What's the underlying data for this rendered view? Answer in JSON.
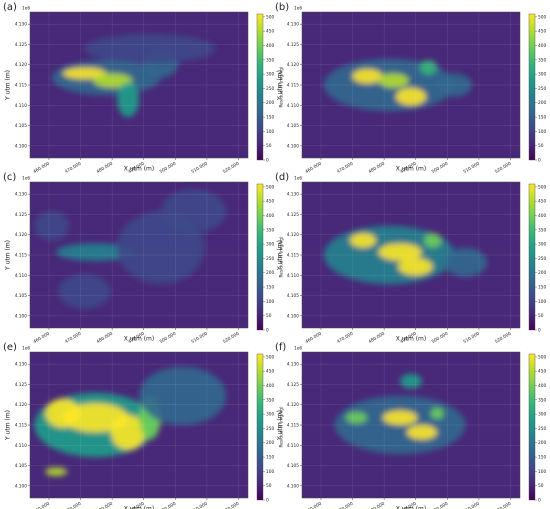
{
  "chart_data": [
    {
      "type": "heatmap",
      "panel_label": "(a)",
      "xlabel": "X utm (m)",
      "ylabel": "Y utm (m)",
      "y_offset": "1e6",
      "colormap": "viridis",
      "xlim": [
        454000,
        523000
      ],
      "xticks": [
        {
          "value": 460000,
          "label": "460.000"
        },
        {
          "value": 470000,
          "label": "470.000"
        },
        {
          "value": 480000,
          "label": "480.000"
        },
        {
          "value": 490000,
          "label": "490.000"
        },
        {
          "value": 500000,
          "label": "500.000"
        },
        {
          "value": 510000,
          "label": "510.000"
        },
        {
          "value": 520000,
          "label": "520.000"
        }
      ],
      "ylim": [
        4.097,
        4.133
      ],
      "yticks": [
        {
          "value": 4.1,
          "label": "4.100"
        },
        {
          "value": 4.105,
          "label": "4.105"
        },
        {
          "value": 4.11,
          "label": "4.110"
        },
        {
          "value": 4.115,
          "label": "4.115"
        },
        {
          "value": 4.12,
          "label": "4.120"
        },
        {
          "value": 4.125,
          "label": "4.125"
        },
        {
          "value": 4.13,
          "label": "4.130"
        }
      ],
      "colorbar_label": "Residual N (mg/kg)",
      "clim": [
        0,
        510
      ],
      "cticks": [
        0,
        50,
        100,
        150,
        200,
        250,
        300,
        350,
        400,
        450,
        500
      ]
    },
    {
      "type": "heatmap",
      "panel_label": "(b)",
      "xlabel": "X utm (m)",
      "ylabel": "Y utm (m)",
      "y_offset": "1e6",
      "colormap": "viridis",
      "xlim": [
        454000,
        523000
      ],
      "xticks": [
        {
          "value": 460000,
          "label": "460.000"
        },
        {
          "value": 470000,
          "label": "470.000"
        },
        {
          "value": 480000,
          "label": "480.000"
        },
        {
          "value": 490000,
          "label": "490.000"
        },
        {
          "value": 500000,
          "label": "500.000"
        },
        {
          "value": 510000,
          "label": "510.000"
        },
        {
          "value": 520000,
          "label": "520.000"
        }
      ],
      "ylim": [
        4.097,
        4.133
      ],
      "yticks": [
        {
          "value": 4.1,
          "label": "4.100"
        },
        {
          "value": 4.105,
          "label": "4.105"
        },
        {
          "value": 4.11,
          "label": "4.110"
        },
        {
          "value": 4.115,
          "label": "4.115"
        },
        {
          "value": 4.12,
          "label": "4.120"
        },
        {
          "value": 4.125,
          "label": "4.125"
        },
        {
          "value": 4.13,
          "label": "4.130"
        }
      ],
      "colorbar_label": "Residual N (mg/kg)",
      "clim": [
        0,
        510
      ],
      "cticks": [
        0,
        50,
        100,
        150,
        200,
        250,
        300,
        350,
        400,
        450,
        500
      ]
    },
    {
      "type": "heatmap",
      "panel_label": "(c)",
      "xlabel": "X utm (m)",
      "ylabel": "Y utm (m)",
      "y_offset": "1e6",
      "colormap": "viridis",
      "xlim": [
        454000,
        523000
      ],
      "xticks": [
        {
          "value": 460000,
          "label": "460.000"
        },
        {
          "value": 470000,
          "label": "470.000"
        },
        {
          "value": 480000,
          "label": "480.000"
        },
        {
          "value": 490000,
          "label": "490.000"
        },
        {
          "value": 500000,
          "label": "500.000"
        },
        {
          "value": 510000,
          "label": "510.000"
        },
        {
          "value": 520000,
          "label": "520.000"
        }
      ],
      "ylim": [
        4.097,
        4.133
      ],
      "yticks": [
        {
          "value": 4.1,
          "label": "4.100"
        },
        {
          "value": 4.105,
          "label": "4.105"
        },
        {
          "value": 4.11,
          "label": "4.110"
        },
        {
          "value": 4.115,
          "label": "4.115"
        },
        {
          "value": 4.12,
          "label": "4.120"
        },
        {
          "value": 4.125,
          "label": "4.125"
        },
        {
          "value": 4.13,
          "label": "4.130"
        }
      ],
      "colorbar_label": "Residual N (mg/kg)",
      "clim": [
        0,
        510
      ],
      "cticks": [
        0,
        50,
        100,
        150,
        200,
        250,
        300,
        350,
        400,
        450,
        500
      ]
    },
    {
      "type": "heatmap",
      "panel_label": "(d)",
      "xlabel": "X utm (m)",
      "ylabel": "Y utm (m)",
      "y_offset": "1e6",
      "colormap": "viridis",
      "xlim": [
        454000,
        523000
      ],
      "xticks": [
        {
          "value": 460000,
          "label": "460.000"
        },
        {
          "value": 470000,
          "label": "470.000"
        },
        {
          "value": 480000,
          "label": "480.000"
        },
        {
          "value": 490000,
          "label": "490.000"
        },
        {
          "value": 500000,
          "label": "500.000"
        },
        {
          "value": 510000,
          "label": "510.000"
        },
        {
          "value": 520000,
          "label": "520.000"
        }
      ],
      "ylim": [
        4.097,
        4.133
      ],
      "yticks": [
        {
          "value": 4.1,
          "label": "4.100"
        },
        {
          "value": 4.105,
          "label": "4.105"
        },
        {
          "value": 4.11,
          "label": "4.110"
        },
        {
          "value": 4.115,
          "label": "4.115"
        },
        {
          "value": 4.12,
          "label": "4.120"
        },
        {
          "value": 4.125,
          "label": "4.125"
        },
        {
          "value": 4.13,
          "label": "4.130"
        }
      ],
      "colorbar_label": "Residual N (mg/kg)",
      "clim": [
        0,
        510
      ],
      "cticks": [
        0,
        50,
        100,
        150,
        200,
        250,
        300,
        350,
        400,
        450,
        500
      ]
    },
    {
      "type": "heatmap",
      "panel_label": "(e)",
      "xlabel": "X utm (m)",
      "ylabel": "Y utm (m)",
      "y_offset": "1e6",
      "colormap": "viridis",
      "xlim": [
        454000,
        523000
      ],
      "xticks": [
        {
          "value": 460000,
          "label": "460.000"
        },
        {
          "value": 470000,
          "label": "470.000"
        },
        {
          "value": 480000,
          "label": "480.000"
        },
        {
          "value": 490000,
          "label": "490.000"
        },
        {
          "value": 500000,
          "label": "500.000"
        },
        {
          "value": 510000,
          "label": "510.000"
        },
        {
          "value": 520000,
          "label": "520.000"
        }
      ],
      "ylim": [
        4.097,
        4.133
      ],
      "yticks": [
        {
          "value": 4.1,
          "label": "4.100"
        },
        {
          "value": 4.105,
          "label": "4.105"
        },
        {
          "value": 4.11,
          "label": "4.110"
        },
        {
          "value": 4.115,
          "label": "4.115"
        },
        {
          "value": 4.12,
          "label": "4.120"
        },
        {
          "value": 4.125,
          "label": "4.125"
        },
        {
          "value": 4.13,
          "label": "4.130"
        }
      ],
      "colorbar_label": "Residual N (mg/kg)",
      "clim": [
        0,
        510
      ],
      "cticks": [
        0,
        50,
        100,
        150,
        200,
        250,
        300,
        350,
        400,
        450,
        500
      ]
    },
    {
      "type": "heatmap",
      "panel_label": "(f)",
      "xlabel": "X utm (m)",
      "ylabel": "Y utm (m)",
      "y_offset": "1e6",
      "colormap": "viridis",
      "xlim": [
        454000,
        523000
      ],
      "xticks": [
        {
          "value": 460000,
          "label": "460.000"
        },
        {
          "value": 470000,
          "label": "470.000"
        },
        {
          "value": 480000,
          "label": "480.000"
        },
        {
          "value": 490000,
          "label": "490.000"
        },
        {
          "value": 500000,
          "label": "500.000"
        },
        {
          "value": 510000,
          "label": "510.000"
        },
        {
          "value": 520000,
          "label": "520.000"
        }
      ],
      "ylim": [
        4.097,
        4.133
      ],
      "yticks": [
        {
          "value": 4.1,
          "label": "4.100"
        },
        {
          "value": 4.105,
          "label": "4.105"
        },
        {
          "value": 4.11,
          "label": "4.110"
        },
        {
          "value": 4.115,
          "label": "4.115"
        },
        {
          "value": 4.12,
          "label": "4.120"
        },
        {
          "value": 4.125,
          "label": "4.125"
        },
        {
          "value": 4.13,
          "label": "4.130"
        }
      ],
      "colorbar_label": "Residual N (mg/kg)",
      "clim": [
        0,
        510
      ],
      "cticks": [
        0,
        50,
        100,
        150,
        200,
        250,
        300,
        350,
        400,
        450,
        500
      ]
    }
  ]
}
